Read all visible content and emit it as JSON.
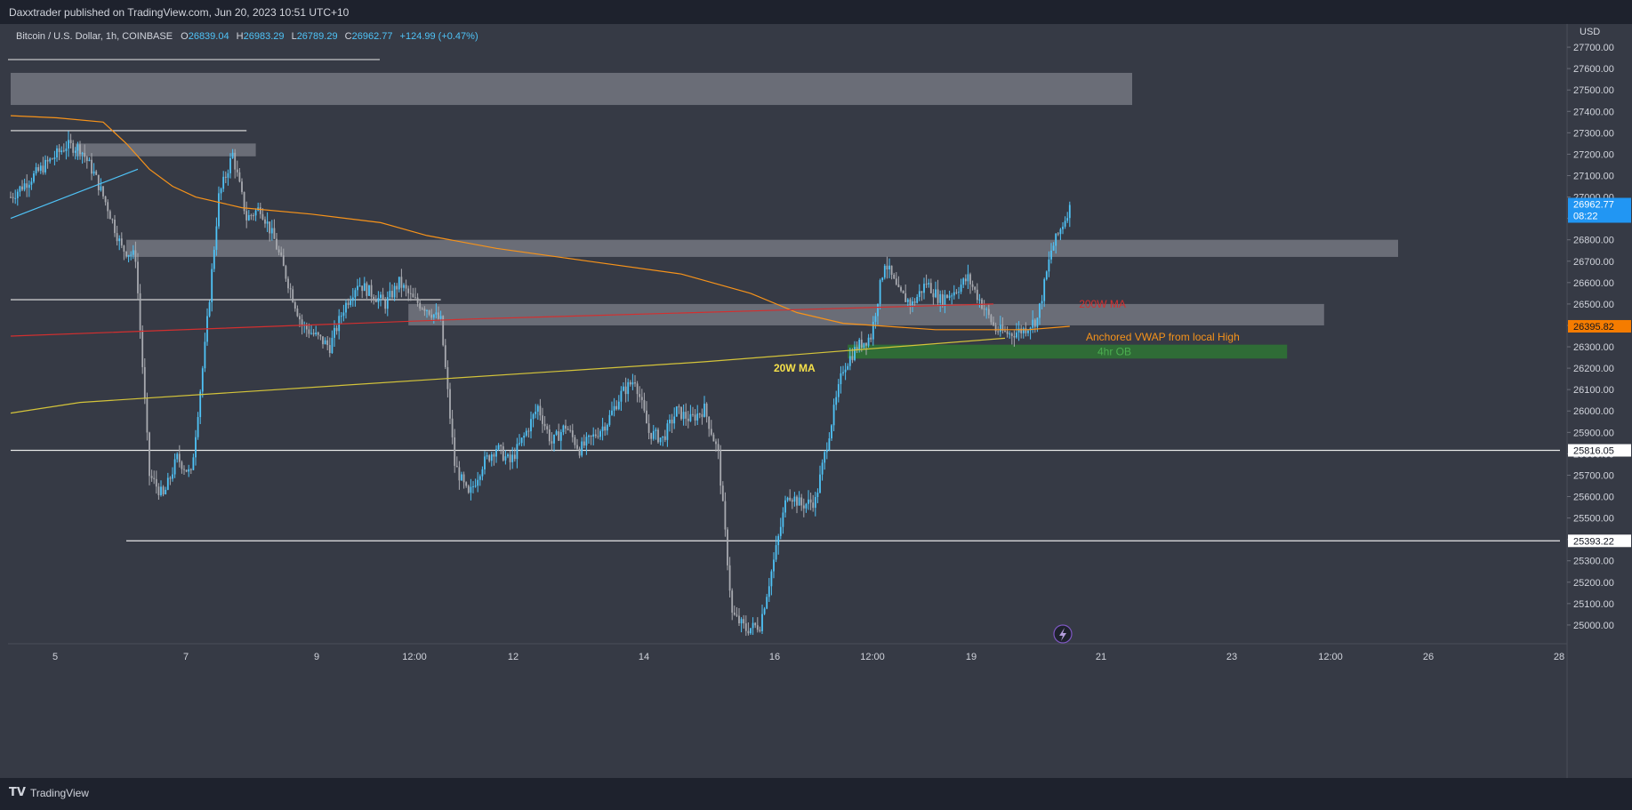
{
  "header": {
    "publisher": "Daxxtrader published on TradingView.com, Jun 20, 2023 10:51 UTC+10"
  },
  "legend": {
    "symbol": "Bitcoin / U.S. Dollar, 1h, COINBASE",
    "o_label": "O",
    "o": "26839.04",
    "h_label": "H",
    "h": "26983.29",
    "l_label": "L",
    "l": "26789.29",
    "c_label": "C",
    "c": "26962.77",
    "change": "+124.99 (+0.47%)"
  },
  "footer": {
    "brand": "TradingView",
    "logo": "tradingview-logo-icon"
  },
  "colors": {
    "background": "#363a45",
    "frame": "#1e222d",
    "candle": "#4fc3f7",
    "wick_up": "#4fc3f7",
    "wick_down": "#a8aab0",
    "vwap": "#f7931a",
    "ma200w": "#d32f2f",
    "ma20w": "#d4c43a",
    "zone_gray": "#9598a1",
    "zone_green": "#2e7d32",
    "price_badge_last": "#2196f3",
    "price_badge_vwap": "#f57c00"
  },
  "chart_data": {
    "type": "candlestick",
    "symbol": "Bitcoin / U.S. Dollar",
    "interval": "1h",
    "exchange": "COINBASE",
    "currency": "USD",
    "ylim": [
      24900,
      27800
    ],
    "y_ticks": [
      "27700.00",
      "27600.00",
      "27500.00",
      "27400.00",
      "27300.00",
      "27200.00",
      "27100.00",
      "27000.00",
      "26900.00",
      "26800.00",
      "26700.00",
      "26600.00",
      "26500.00",
      "26400.00",
      "26300.00",
      "26200.00",
      "26100.00",
      "26000.00",
      "25900.00",
      "25800.00",
      "25700.00",
      "25600.00",
      "25500.00",
      "25400.00",
      "25300.00",
      "25200.00",
      "25100.00",
      "25000.00"
    ],
    "x_ticks": [
      "5",
      "7",
      "9",
      "12:00",
      "12",
      "14",
      "16",
      "12:00",
      "19",
      "21",
      "23",
      "12:00",
      "26",
      "28"
    ],
    "price_badges": [
      {
        "price": "26962.77",
        "sub": "08:22",
        "kind": "last",
        "value": 26962.77
      },
      {
        "price": "26395.82",
        "kind": "vwap",
        "value": 26395.82
      },
      {
        "price": "25816.05",
        "kind": "level",
        "value": 25816.05
      },
      {
        "price": "25393.22",
        "kind": "level",
        "value": 25393.22
      }
    ],
    "ohlc_last": {
      "o": 26839.04,
      "h": 26983.29,
      "l": 26789.29,
      "c": 26962.77,
      "change": 124.99,
      "change_pct": 0.47
    },
    "path_anchors": [
      [
        0,
        27000
      ],
      [
        12,
        27120
      ],
      [
        24,
        27240
      ],
      [
        30,
        27230
      ],
      [
        36,
        27110
      ],
      [
        42,
        26950
      ],
      [
        48,
        26760
      ],
      [
        54,
        26720
      ],
      [
        60,
        25700
      ],
      [
        66,
        25600
      ],
      [
        72,
        25780
      ],
      [
        78,
        25700
      ],
      [
        84,
        26300
      ],
      [
        90,
        27000
      ],
      [
        96,
        27200
      ],
      [
        102,
        26900
      ],
      [
        108,
        26950
      ],
      [
        114,
        26800
      ],
      [
        120,
        26600
      ],
      [
        126,
        26400
      ],
      [
        132,
        26350
      ],
      [
        138,
        26300
      ],
      [
        144,
        26480
      ],
      [
        150,
        26600
      ],
      [
        156,
        26550
      ],
      [
        162,
        26500
      ],
      [
        168,
        26600
      ],
      [
        174,
        26520
      ],
      [
        180,
        26480
      ],
      [
        186,
        26420
      ],
      [
        192,
        25750
      ],
      [
        198,
        25600
      ],
      [
        204,
        25750
      ],
      [
        210,
        25830
      ],
      [
        216,
        25760
      ],
      [
        222,
        25880
      ],
      [
        228,
        26020
      ],
      [
        234,
        25850
      ],
      [
        240,
        25930
      ],
      [
        246,
        25820
      ],
      [
        252,
        25880
      ],
      [
        258,
        25950
      ],
      [
        264,
        26080
      ],
      [
        270,
        26150
      ],
      [
        276,
        25900
      ],
      [
        282,
        25870
      ],
      [
        288,
        26000
      ],
      [
        294,
        25960
      ],
      [
        300,
        26010
      ],
      [
        306,
        25800
      ],
      [
        312,
        25050
      ],
      [
        318,
        24980
      ],
      [
        324,
        25000
      ],
      [
        330,
        25300
      ],
      [
        336,
        25620
      ],
      [
        342,
        25560
      ],
      [
        348,
        25580
      ],
      [
        354,
        25900
      ],
      [
        360,
        26200
      ],
      [
        366,
        26300
      ],
      [
        372,
        26350
      ],
      [
        378,
        26700
      ],
      [
        384,
        26550
      ],
      [
        390,
        26500
      ],
      [
        396,
        26600
      ],
      [
        402,
        26520
      ],
      [
        408,
        26560
      ],
      [
        414,
        26620
      ],
      [
        420,
        26500
      ],
      [
        426,
        26380
      ],
      [
        432,
        26360
      ],
      [
        438,
        26380
      ],
      [
        444,
        26430
      ],
      [
        450,
        26750
      ],
      [
        456,
        26900
      ],
      [
        458,
        26962.77
      ]
    ],
    "lines": [
      {
        "kind": "white",
        "y": 27310,
        "x0": 0,
        "x1": 102
      },
      {
        "kind": "white",
        "y": 26520,
        "x0": 0,
        "x1": 186
      },
      {
        "kind": "white",
        "y": 25816.05,
        "x0": 0,
        "x1": 670
      },
      {
        "kind": "white",
        "y": 25393.22,
        "x0": 50,
        "x1": 670
      }
    ],
    "zones": [
      {
        "kind": "gray",
        "y0": 27430,
        "y1": 27580,
        "x0": 0,
        "x1": 485
      },
      {
        "kind": "gray",
        "y0": 27190,
        "y1": 27250,
        "x0": 28,
        "x1": 106
      },
      {
        "kind": "gray",
        "y0": 26720,
        "y1": 26800,
        "x0": 50,
        "x1": 600
      },
      {
        "kind": "gray",
        "y0": 26400,
        "y1": 26500,
        "x0": 172,
        "x1": 568
      },
      {
        "kind": "green",
        "y0": 26245,
        "y1": 26310,
        "x0": 362,
        "x1": 552
      }
    ],
    "indicators": [
      {
        "kind": "vwap",
        "label": "Anchored VWAP from local High",
        "label_at": [
          465,
          26345
        ],
        "points": [
          [
            0,
            27380
          ],
          [
            20,
            27370
          ],
          [
            40,
            27350
          ],
          [
            50,
            27250
          ],
          [
            60,
            27130
          ],
          [
            70,
            27050
          ],
          [
            80,
            27000
          ],
          [
            100,
            26950
          ],
          [
            130,
            26920
          ],
          [
            160,
            26880
          ],
          [
            180,
            26820
          ],
          [
            210,
            26760
          ],
          [
            250,
            26700
          ],
          [
            290,
            26640
          ],
          [
            320,
            26550
          ],
          [
            340,
            26460
          ],
          [
            360,
            26410
          ],
          [
            400,
            26380
          ],
          [
            440,
            26380
          ],
          [
            458,
            26395.82
          ]
        ]
      },
      {
        "kind": "ma200w",
        "label": "200W MA",
        "label_at": [
          462,
          26500
        ],
        "points": [
          [
            0,
            26350
          ],
          [
            200,
            26430
          ],
          [
            425,
            26500
          ]
        ]
      },
      {
        "kind": "ma20w",
        "label": "20W MA",
        "label_at": [
          330,
          26200
        ],
        "points": [
          [
            0,
            25990
          ],
          [
            30,
            26040
          ],
          [
            300,
            26230
          ],
          [
            430,
            26340
          ]
        ]
      },
      {
        "kind": "ob",
        "label": "4hr OB",
        "label_at": [
          470,
          26278
        ]
      },
      {
        "kind": "trend",
        "points": [
          [
            0,
            26900
          ],
          [
            55,
            27130
          ]
        ]
      }
    ]
  }
}
